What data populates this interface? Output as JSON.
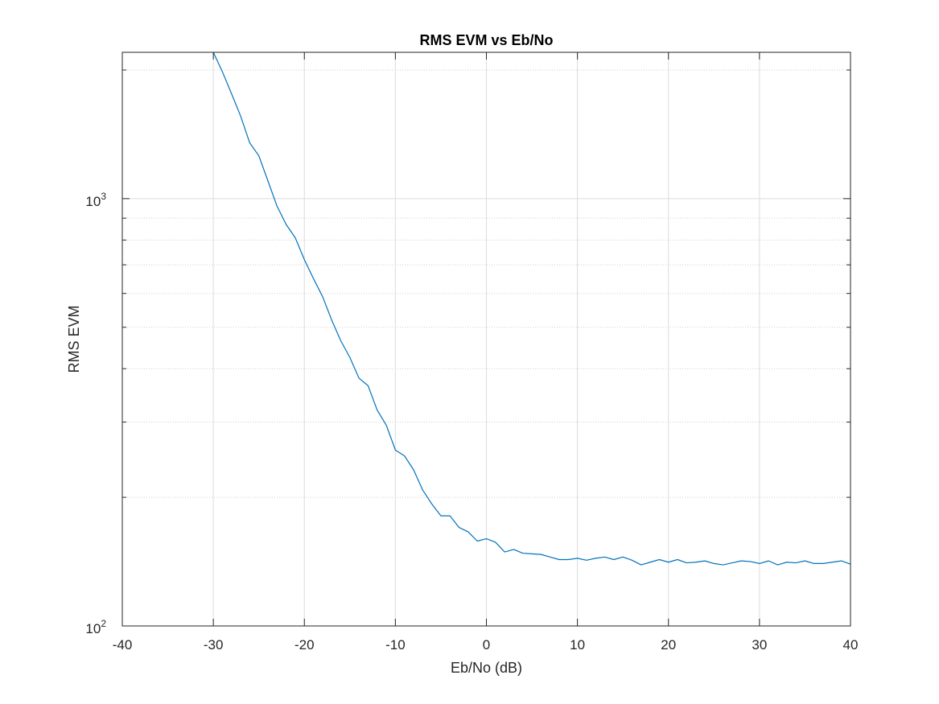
{
  "chart_data": {
    "type": "line",
    "title": "RMS EVM vs Eb/No",
    "xlabel": "Eb/No (dB)",
    "ylabel": "RMS EVM",
    "xlim": [
      -40,
      40
    ],
    "ylim": [
      100,
      2200
    ],
    "yscale": "log",
    "grid": true,
    "x_ticks": [
      -40,
      -30,
      -20,
      -10,
      0,
      10,
      20,
      30,
      40
    ],
    "x_tick_labels": [
      "-40",
      "-30",
      "-20",
      "-10",
      "0",
      "10",
      "20",
      "30",
      "40"
    ],
    "y_ticks": [
      100,
      1000
    ],
    "y_tick_labels": [
      {
        "base": "10",
        "exp": "2"
      },
      {
        "base": "10",
        "exp": "3"
      }
    ],
    "line_color": "#0072BD",
    "series": [
      {
        "x": [
          -30,
          -29,
          -28,
          -27,
          -26,
          -25,
          -24,
          -23,
          -22,
          -21,
          -20,
          -19,
          -18,
          -17,
          -16,
          -15,
          -14,
          -13,
          -12,
          -11,
          -10,
          -9,
          -8,
          -7,
          -6,
          -5,
          -4,
          -3,
          -2,
          -1,
          0,
          1,
          2,
          3,
          4,
          5,
          6,
          7,
          8,
          9,
          10,
          11,
          12,
          13,
          14,
          15,
          16,
          17,
          18,
          19,
          20,
          21,
          22,
          23,
          24,
          25,
          26,
          27,
          28,
          29,
          30,
          31,
          32,
          33,
          34,
          35,
          36,
          37,
          38,
          39,
          40
        ],
        "values": [
          2200,
          1980,
          1760,
          1560,
          1350,
          1260,
          1100,
          960,
          870,
          810,
          720,
          650,
          590,
          520,
          465,
          425,
          380,
          365,
          320,
          295,
          258,
          250,
          232,
          208,
          193,
          181,
          181,
          170,
          166,
          158,
          160,
          157,
          149,
          151,
          148,
          147.5,
          147,
          145,
          143,
          143,
          144,
          142.5,
          144,
          145,
          143,
          145,
          142.5,
          139,
          141,
          143,
          141,
          143,
          140.5,
          141,
          142,
          140,
          139,
          140.5,
          142,
          141.5,
          140,
          142,
          139,
          141,
          140.5,
          142,
          140,
          140,
          141,
          142,
          139.5
        ]
      }
    ]
  }
}
